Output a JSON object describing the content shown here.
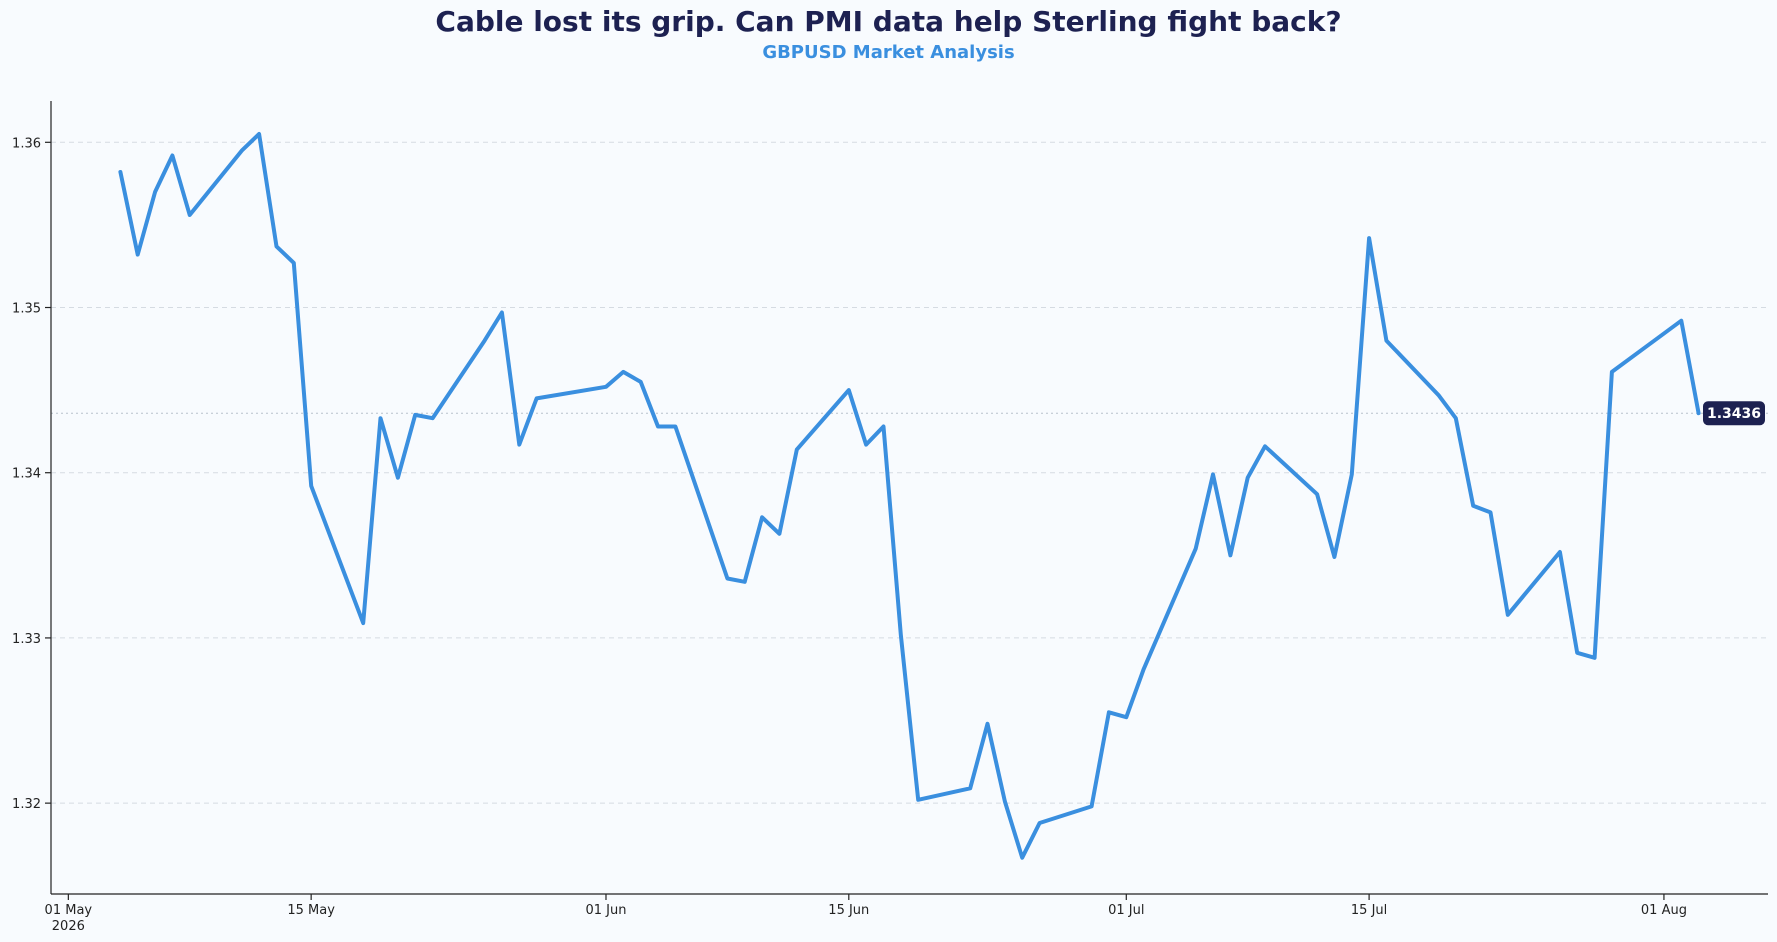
{
  "header": {
    "title": "Cable lost its grip. Can PMI data help Sterling fight back?",
    "subtitle": "GBPUSD Market Analysis"
  },
  "colors": {
    "title": "#1d2151",
    "subtitle": "#3a8fdf",
    "line": "#3a8fdf",
    "badge_bg": "#1d2151",
    "badge_text": "#ffffff",
    "grid": "#d5dbe2",
    "background": "#f8fbfe"
  },
  "chart_data": {
    "type": "line",
    "title": "Cable lost its grip. Can PMI data help Sterling fight back?",
    "subtitle": "GBPUSD Market Analysis",
    "xlabel": "",
    "ylabel": "",
    "x_type": "date",
    "xlim": [
      "2026-04-30",
      "2026-08-07"
    ],
    "ylim": [
      1.3145,
      1.3625
    ],
    "grid": "horizontal dashed",
    "legend": "none",
    "y_ticks": [
      {
        "value": 1.32,
        "label": "1.32"
      },
      {
        "value": 1.33,
        "label": "1.33"
      },
      {
        "value": 1.34,
        "label": "1.34"
      },
      {
        "value": 1.35,
        "label": "1.35"
      },
      {
        "value": 1.36,
        "label": "1.36"
      }
    ],
    "x_ticks": [
      {
        "date": "2026-05-01",
        "label": "01 May",
        "sublabel": "2026"
      },
      {
        "date": "2026-05-15",
        "label": "15 May",
        "sublabel": ""
      },
      {
        "date": "2026-06-01",
        "label": "01 Jun",
        "sublabel": ""
      },
      {
        "date": "2026-06-15",
        "label": "15 Jun",
        "sublabel": ""
      },
      {
        "date": "2026-07-01",
        "label": "01 Jul",
        "sublabel": ""
      },
      {
        "date": "2026-07-15",
        "label": "15 Jul",
        "sublabel": ""
      },
      {
        "date": "2026-08-01",
        "label": "01 Aug",
        "sublabel": ""
      }
    ],
    "last_value_label": "1.3436",
    "last_value": 1.3436,
    "series": [
      {
        "x": [
          "2026-05-04",
          "2026-05-05",
          "2026-05-06",
          "2026-05-07",
          "2026-05-08",
          "2026-05-11",
          "2026-05-12",
          "2026-05-13",
          "2026-05-14",
          "2026-05-15",
          "2026-05-18",
          "2026-05-19",
          "2026-05-20",
          "2026-05-21",
          "2026-05-22",
          "2026-05-25",
          "2026-05-26",
          "2026-05-27",
          "2026-05-28",
          "2026-06-01",
          "2026-06-02",
          "2026-06-03",
          "2026-06-04",
          "2026-06-05",
          "2026-06-08",
          "2026-06-09",
          "2026-06-10",
          "2026-06-11",
          "2026-06-12",
          "2026-06-15",
          "2026-06-16",
          "2026-06-17",
          "2026-06-18",
          "2026-06-19",
          "2026-06-22",
          "2026-06-23",
          "2026-06-24",
          "2026-06-25",
          "2026-06-26",
          "2026-06-29",
          "2026-06-30",
          "2026-07-01",
          "2026-07-02",
          "2026-07-05",
          "2026-07-06",
          "2026-07-07",
          "2026-07-08",
          "2026-07-09",
          "2026-07-12",
          "2026-07-13",
          "2026-07-14",
          "2026-07-15",
          "2026-07-16",
          "2026-07-19",
          "2026-07-20",
          "2026-07-21",
          "2026-07-22",
          "2026-07-23",
          "2026-07-26",
          "2026-07-27",
          "2026-07-28",
          "2026-07-29",
          "2026-08-02",
          "2026-08-03"
        ],
        "values": [
          1.3582,
          1.3532,
          1.357,
          1.3592,
          1.3556,
          1.3595,
          1.3605,
          1.3537,
          1.3527,
          1.3392,
          1.3309,
          1.3433,
          1.3397,
          1.3435,
          1.3433,
          1.348,
          1.3497,
          1.3417,
          1.3445,
          1.3452,
          1.3461,
          1.3455,
          1.3428,
          1.3428,
          1.3336,
          1.3334,
          1.3373,
          1.3363,
          1.3414,
          1.345,
          1.3417,
          1.3428,
          1.3302,
          1.3202,
          1.3209,
          1.3248,
          1.3201,
          1.3167,
          1.3188,
          1.3198,
          1.3255,
          1.3252,
          1.3281,
          1.3354,
          1.3399,
          1.335,
          1.3397,
          1.3416,
          1.3387,
          1.3349,
          1.3399,
          1.3542,
          1.348,
          1.3447,
          1.3433,
          1.338,
          1.3376,
          1.3314,
          1.3352,
          1.3291,
          1.3288,
          1.3461,
          1.3492,
          1.3436
        ]
      }
    ]
  }
}
